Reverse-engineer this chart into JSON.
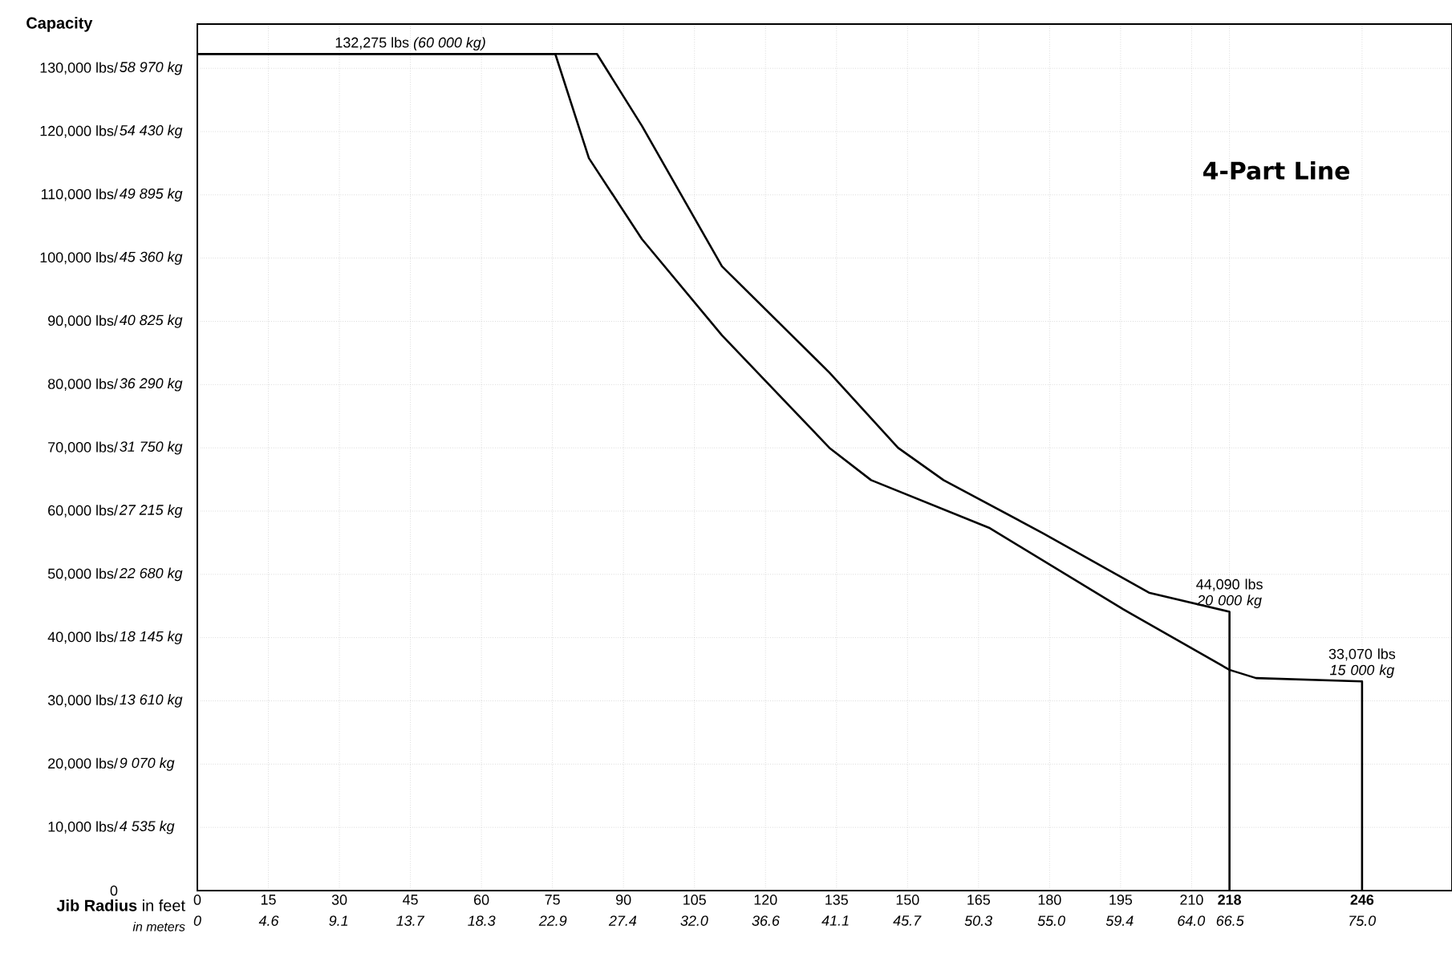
{
  "chart_data": {
    "type": "line",
    "title": "4-Part Line",
    "xlabel": "**Jib Radius** in feet",
    "x2label": "in meters",
    "ylabel": "Capacity",
    "xlim": [
      0,
      265
    ],
    "ylim": [
      0,
      137000
    ],
    "xticks": [
      0,
      15,
      30,
      45,
      60,
      75,
      90,
      105,
      120,
      135,
      150,
      165,
      180,
      195,
      210,
      {
        "value": 218,
        "label": "**218**"
      },
      {
        "value": 246,
        "label": "**246**"
      }
    ],
    "x2lim": [
      0,
      80.8
    ],
    "x2ticks": [
      0,
      4.6,
      9.1,
      13.7,
      18.3,
      22.9,
      27.4,
      {
        "value": 32,
        "label": "32.0"
      },
      36.6,
      41.1,
      45.7,
      50.3,
      {
        "value": 55,
        "label": "55.0"
      },
      59.4,
      {
        "value": 64,
        "label": "64.0"
      },
      66.5,
      {
        "value": 75,
        "label": "75.0"
      }
    ],
    "yticks": [
      0,
      {
        "value": 10000,
        "label": "10,000 lbs/"
      },
      {
        "value": 20000,
        "label": "20,000 lbs/"
      },
      {
        "value": 30000,
        "label": "30,000 lbs/"
      },
      {
        "value": 40000,
        "label": "40,000 lbs/"
      },
      {
        "value": 50000,
        "label": "50,000 lbs/"
      },
      {
        "value": 60000,
        "label": "60,000 lbs/"
      },
      {
        "value": 70000,
        "label": "70,000 lbs/"
      },
      {
        "value": 80000,
        "label": "80,000 lbs/"
      },
      {
        "value": 90000,
        "label": "90,000 lbs/"
      },
      {
        "value": 100000,
        "label": "100,000 lbs/"
      },
      {
        "value": 110000,
        "label": "110,000 lbs/"
      },
      {
        "value": 120000,
        "label": "120,000 lbs/"
      },
      {
        "value": 130000,
        "label": "130,000 lbs/"
      }
    ],
    "y2lim": [
      0,
      62140
    ],
    "y2ticks": [
      {
        "value": 4535,
        "label": "4 535 kg"
      },
      {
        "value": 9070,
        "label": "9 070 kg"
      },
      {
        "value": 13610,
        "label": "13 610 kg"
      },
      {
        "value": 18145,
        "label": "18 145 kg"
      },
      {
        "value": 22680,
        "label": "22 680 kg"
      },
      {
        "value": 27215,
        "label": "27 215 kg"
      },
      {
        "value": 31750,
        "label": "31 750 kg"
      },
      {
        "value": 36290,
        "label": "36 290 kg"
      },
      {
        "value": 40825,
        "label": "40 825 kg"
      },
      {
        "value": 45360,
        "label": "45 360 kg"
      },
      {
        "value": 49895,
        "label": "49 895 kg"
      },
      {
        "value": 54430,
        "label": "54 430 kg"
      },
      {
        "value": 58970,
        "label": "58 970 kg"
      }
    ],
    "grid": true,
    "series": [
      {
        "color": "#000000",
        "x": [
          0,
          84.4,
          93.9,
          110.8,
          133.5,
          148,
          157.6,
          178.6,
          201,
          218,
          218
        ],
        "values": [
          132275,
          132275,
          120900,
          98700,
          81900,
          70000,
          64900,
          56500,
          47100,
          44090,
          0
        ]
      },
      {
        "color": "#000000",
        "x": [
          0,
          75.6,
          82.7,
          93.9,
          110.8,
          133.5,
          142.3,
          167.4,
          195.5,
          218,
          223.6,
          246,
          246
        ],
        "values": [
          132275,
          132275,
          115800,
          103000,
          87800,
          70000,
          64900,
          57300,
          44500,
          34900,
          33600,
          33070,
          0
        ]
      }
    ],
    "annotations": [
      {
        "text": "132,275 lbs *(60 000 kg)*",
        "x": 45,
        "y": 132275
      },
      {
        "text": "44,090 lbs *20 000 kg*",
        "x": 218,
        "y": 44090
      },
      {
        "text": "33,070 lbs *15 000 kg*",
        "x": 246,
        "y": 33070
      }
    ]
  }
}
